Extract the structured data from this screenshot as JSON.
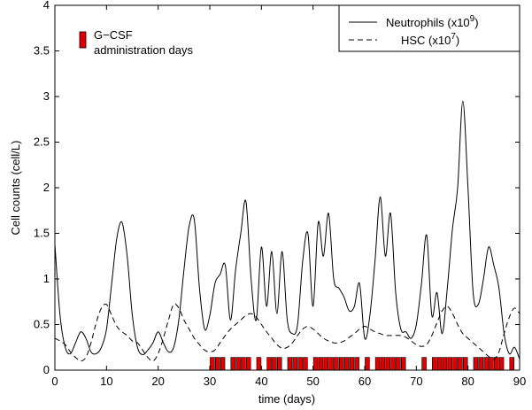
{
  "chart_data": {
    "type": "line",
    "xlabel": "time (days)",
    "ylabel": "Cell counts (cell/L)",
    "xlim": [
      0,
      90
    ],
    "ylim": [
      0,
      4
    ],
    "xticks": [
      0,
      10,
      20,
      30,
      40,
      50,
      60,
      70,
      80,
      90
    ],
    "yticks": [
      0,
      0.5,
      1,
      1.5,
      2,
      2.5,
      3,
      3.5,
      4
    ],
    "ytick_labels": [
      "0",
      "0.5",
      "1",
      "1.5",
      "2",
      "2.5",
      "3",
      "3.5",
      "4"
    ],
    "grid": false,
    "legend_position": "top-right",
    "legend": [
      {
        "text": "Neutrophils (x10",
        "sup": "9",
        "after": ")",
        "style": "solid"
      },
      {
        "text": "HSC (x10",
        "sup": "7",
        "after": ")",
        "style": "dashed"
      }
    ],
    "annotation": {
      "lines": [
        "G−CSF",
        "administration days"
      ],
      "marker_color": "#e00000"
    },
    "series": [
      {
        "name": "Neutrophils (x10^9)",
        "style": "solid",
        "color": "#000000",
        "x": [
          0,
          1,
          2,
          3,
          4,
          5,
          6,
          7,
          8,
          9,
          10,
          11,
          12,
          13,
          14,
          15,
          16,
          17,
          18,
          19,
          20,
          21,
          22,
          23,
          24,
          25,
          26,
          27,
          28,
          29,
          30,
          31,
          32,
          33,
          34,
          35,
          36,
          37,
          38,
          39,
          40,
          41,
          42,
          43,
          44,
          45,
          46,
          47,
          48,
          49,
          50,
          51,
          52,
          53,
          54,
          55,
          56,
          57,
          58,
          59,
          60,
          61,
          62,
          63,
          64,
          65,
          66,
          67,
          68,
          69,
          70,
          71,
          72,
          73,
          74,
          75,
          76,
          77,
          78,
          79,
          80,
          81,
          82,
          83,
          84,
          85,
          86,
          87,
          88,
          89,
          90
        ],
        "y": [
          1.38,
          0.6,
          0.25,
          0.18,
          0.3,
          0.42,
          0.35,
          0.2,
          0.18,
          0.25,
          0.45,
          0.95,
          1.45,
          1.62,
          1.25,
          0.6,
          0.25,
          0.17,
          0.22,
          0.3,
          0.42,
          0.3,
          0.2,
          0.25,
          0.55,
          1.1,
          1.58,
          1.65,
          0.9,
          0.45,
          0.6,
          0.95,
          1.05,
          1.15,
          0.55,
          1.1,
          1.5,
          1.85,
          1.0,
          0.55,
          1.35,
          0.7,
          1.3,
          0.62,
          1.3,
          0.55,
          0.4,
          0.5,
          1.2,
          1.5,
          0.7,
          1.62,
          1.25,
          1.72,
          1.0,
          0.9,
          0.8,
          0.65,
          0.7,
          0.95,
          0.35,
          0.6,
          1.2,
          1.9,
          1.25,
          1.72,
          0.85,
          0.45,
          0.42,
          0.35,
          0.5,
          0.95,
          1.48,
          0.6,
          0.85,
          0.4,
          0.9,
          1.55,
          2.0,
          2.95,
          2.0,
          0.85,
          0.72,
          1.0,
          1.35,
          1.15,
          0.9,
          0.4,
          0.18,
          0.25,
          0.12
        ]
      },
      {
        "name": "HSC (x10^7)",
        "style": "dashed",
        "color": "#000000",
        "x": [
          0,
          1,
          2,
          3,
          4,
          5,
          6,
          7,
          8,
          9,
          10,
          11,
          12,
          13,
          14,
          15,
          16,
          17,
          18,
          19,
          20,
          21,
          22,
          23,
          24,
          25,
          26,
          27,
          28,
          29,
          30,
          31,
          32,
          33,
          34,
          35,
          36,
          37,
          38,
          39,
          40,
          41,
          42,
          43,
          44,
          45,
          46,
          47,
          48,
          49,
          50,
          51,
          52,
          53,
          54,
          55,
          56,
          57,
          58,
          59,
          60,
          61,
          62,
          63,
          64,
          65,
          66,
          67,
          68,
          69,
          70,
          71,
          72,
          73,
          74,
          75,
          76,
          77,
          78,
          79,
          80,
          81,
          82,
          83,
          84,
          85,
          86,
          87,
          88,
          89,
          90
        ],
        "y": [
          0.35,
          0.32,
          0.28,
          0.2,
          0.14,
          0.1,
          0.14,
          0.3,
          0.52,
          0.68,
          0.72,
          0.6,
          0.48,
          0.42,
          0.38,
          0.32,
          0.3,
          0.22,
          0.14,
          0.1,
          0.18,
          0.35,
          0.55,
          0.72,
          0.68,
          0.55,
          0.45,
          0.35,
          0.28,
          0.22,
          0.2,
          0.22,
          0.3,
          0.38,
          0.45,
          0.5,
          0.55,
          0.6,
          0.62,
          0.58,
          0.5,
          0.42,
          0.35,
          0.28,
          0.24,
          0.25,
          0.3,
          0.38,
          0.45,
          0.48,
          0.45,
          0.4,
          0.35,
          0.32,
          0.3,
          0.3,
          0.32,
          0.36,
          0.4,
          0.45,
          0.48,
          0.45,
          0.42,
          0.4,
          0.38,
          0.38,
          0.38,
          0.38,
          0.36,
          0.32,
          0.28,
          0.26,
          0.28,
          0.38,
          0.52,
          0.65,
          0.7,
          0.62,
          0.5,
          0.4,
          0.35,
          0.3,
          0.25,
          0.2,
          0.15,
          0.12,
          0.2,
          0.4,
          0.58,
          0.68,
          0.62
        ]
      }
    ],
    "gcsf_days": [
      30,
      31,
      32,
      34,
      35,
      36,
      37,
      39,
      41,
      42,
      43,
      45,
      46,
      47,
      48,
      50,
      51,
      52,
      53,
      54,
      55,
      56,
      57,
      58,
      60,
      62,
      63,
      64,
      65,
      66,
      67,
      71,
      73,
      74,
      75,
      76,
      77,
      78,
      79,
      81,
      82,
      83,
      84,
      85,
      86,
      88
    ],
    "gcsf_bar_height": 0.14
  }
}
